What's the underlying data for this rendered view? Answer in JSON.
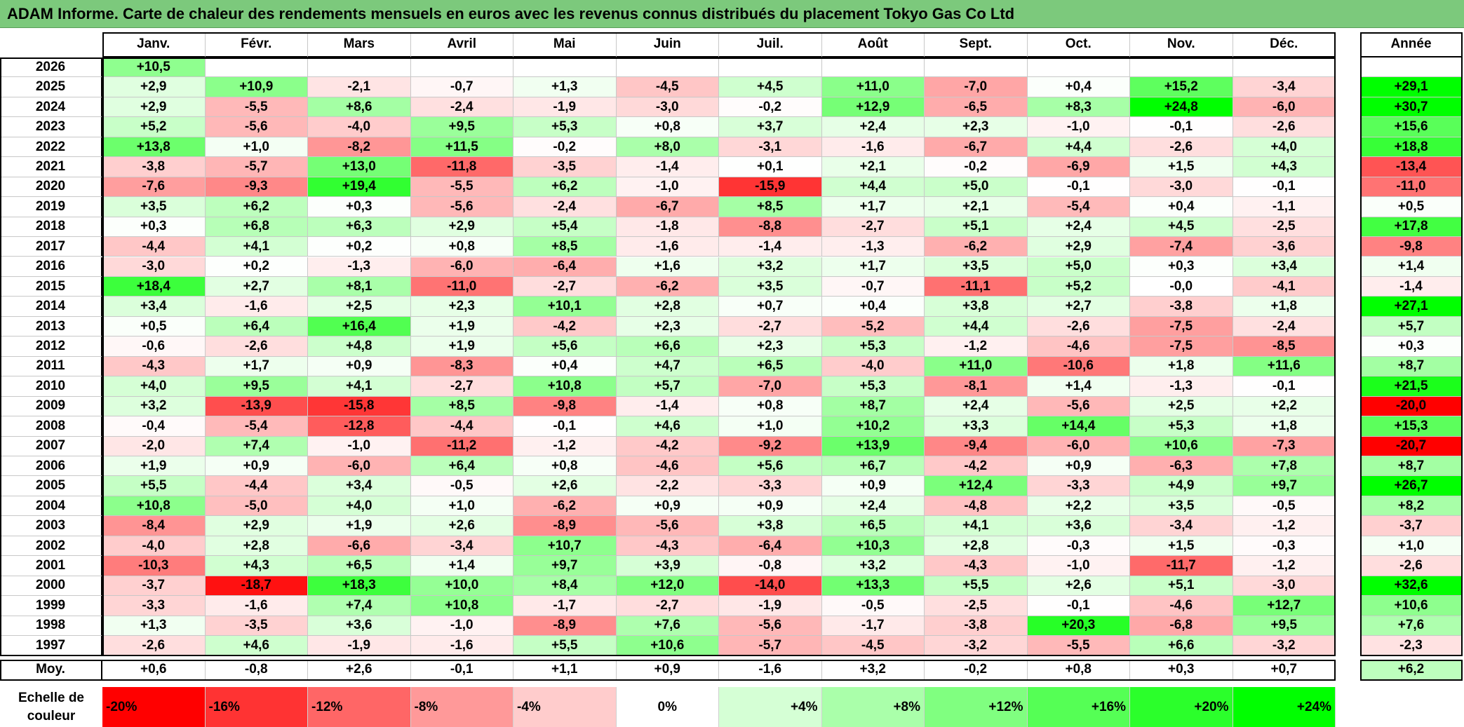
{
  "title": "ADAM Informe. Carte de chaleur des rendements mensuels en euros avec les revenus connus distribués du placement Tokyo Gas Co Ltd",
  "chart_data": {
    "type": "heatmap",
    "title": "ADAM Informe. Carte de chaleur des rendements mensuels en euros avec les revenus connus distribués du placement Tokyo Gas Co Ltd",
    "months": [
      "Janv.",
      "Févr.",
      "Mars",
      "Avril",
      "Mai",
      "Juin",
      "Juil.",
      "Août",
      "Sept.",
      "Oct.",
      "Nov.",
      "Déc."
    ],
    "year_header": "Année",
    "rows": [
      {
        "year": "2026",
        "values": [
          "+10,5",
          null,
          null,
          null,
          null,
          null,
          null,
          null,
          null,
          null,
          null,
          null
        ],
        "annual": null
      },
      {
        "year": "2025",
        "values": [
          "+2,9",
          "+10,9",
          "-2,1",
          "-0,7",
          "+1,3",
          "-4,5",
          "+4,5",
          "+11,0",
          "-7,0",
          "+0,4",
          "+15,2",
          "-3,4"
        ],
        "annual": "+29,1"
      },
      {
        "year": "2024",
        "values": [
          "+2,9",
          "-5,5",
          "+8,6",
          "-2,4",
          "-1,9",
          "-3,0",
          "-0,2",
          "+12,9",
          "-6,5",
          "+8,3",
          "+24,8",
          "-6,0"
        ],
        "annual": "+30,7"
      },
      {
        "year": "2023",
        "values": [
          "+5,2",
          "-5,6",
          "-4,0",
          "+9,5",
          "+5,3",
          "+0,8",
          "+3,7",
          "+2,4",
          "+2,3",
          "-1,0",
          "-0,1",
          "-2,6"
        ],
        "annual": "+15,6"
      },
      {
        "year": "2022",
        "values": [
          "+13,8",
          "+1,0",
          "-8,2",
          "+11,5",
          "-0,2",
          "+8,0",
          "-3,1",
          "-1,6",
          "-6,7",
          "+4,4",
          "-2,6",
          "+4,0"
        ],
        "annual": "+18,8"
      },
      {
        "year": "2021",
        "values": [
          "-3,8",
          "-5,7",
          "+13,0",
          "-11,8",
          "-3,5",
          "-1,4",
          "+0,1",
          "+2,1",
          "-0,2",
          "-6,9",
          "+1,5",
          "+4,3"
        ],
        "annual": "-13,4"
      },
      {
        "year": "2020",
        "values": [
          "-7,6",
          "-9,3",
          "+19,4",
          "-5,5",
          "+6,2",
          "-1,0",
          "-15,9",
          "+4,4",
          "+5,0",
          "-0,1",
          "-3,0",
          "-0,1"
        ],
        "annual": "-11,0"
      },
      {
        "year": "2019",
        "values": [
          "+3,5",
          "+6,2",
          "+0,3",
          "-5,6",
          "-2,4",
          "-6,7",
          "+8,5",
          "+1,7",
          "+2,1",
          "-5,4",
          "+0,4",
          "-1,1"
        ],
        "annual": "+0,5"
      },
      {
        "year": "2018",
        "values": [
          "+0,3",
          "+6,8",
          "+6,3",
          "+2,9",
          "+5,4",
          "-1,8",
          "-8,8",
          "-2,7",
          "+5,1",
          "+2,4",
          "+4,5",
          "-2,5"
        ],
        "annual": "+17,8"
      },
      {
        "year": "2017",
        "values": [
          "-4,4",
          "+4,1",
          "+0,2",
          "+0,8",
          "+8,5",
          "-1,6",
          "-1,4",
          "-1,3",
          "-6,2",
          "+2,9",
          "-7,4",
          "-3,6"
        ],
        "annual": "-9,8"
      },
      {
        "year": "2016",
        "values": [
          "-3,0",
          "+0,2",
          "-1,3",
          "-6,0",
          "-6,4",
          "+1,6",
          "+3,2",
          "+1,7",
          "+3,5",
          "+5,0",
          "+0,3",
          "+3,4"
        ],
        "annual": "+1,4"
      },
      {
        "year": "2015",
        "values": [
          "+18,4",
          "+2,7",
          "+8,1",
          "-11,0",
          "-2,7",
          "-6,2",
          "+3,5",
          "-0,7",
          "-11,1",
          "+5,2",
          "-0,0",
          "-4,1"
        ],
        "annual": "-1,4"
      },
      {
        "year": "2014",
        "values": [
          "+3,4",
          "-1,6",
          "+2,5",
          "+2,3",
          "+10,1",
          "+2,8",
          "+0,7",
          "+0,4",
          "+3,8",
          "+2,7",
          "-3,8",
          "+1,8"
        ],
        "annual": "+27,1"
      },
      {
        "year": "2013",
        "values": [
          "+0,5",
          "+6,4",
          "+16,4",
          "+1,9",
          "-4,2",
          "+2,3",
          "-2,7",
          "-5,2",
          "+4,4",
          "-2,6",
          "-7,5",
          "-2,4"
        ],
        "annual": "+5,7"
      },
      {
        "year": "2012",
        "values": [
          "-0,6",
          "-2,6",
          "+4,8",
          "+1,9",
          "+5,6",
          "+6,6",
          "+2,3",
          "+5,3",
          "-1,2",
          "-4,6",
          "-7,5",
          "-8,5"
        ],
        "annual": "+0,3"
      },
      {
        "year": "2011",
        "values": [
          "-4,3",
          "+1,7",
          "+0,9",
          "-8,3",
          "+0,4",
          "+4,7",
          "+6,5",
          "-4,0",
          "+11,0",
          "-10,6",
          "+1,8",
          "+11,6"
        ],
        "annual": "+8,7"
      },
      {
        "year": "2010",
        "values": [
          "+4,0",
          "+9,5",
          "+4,1",
          "-2,7",
          "+10,8",
          "+5,7",
          "-7,0",
          "+5,3",
          "-8,1",
          "+1,4",
          "-1,3",
          "-0,1"
        ],
        "annual": "+21,5"
      },
      {
        "year": "2009",
        "values": [
          "+3,2",
          "-13,9",
          "-15,8",
          "+8,5",
          "-9,8",
          "-1,4",
          "+0,8",
          "+8,7",
          "+2,4",
          "-5,6",
          "+2,5",
          "+2,2"
        ],
        "annual": "-20,0"
      },
      {
        "year": "2008",
        "values": [
          "-0,4",
          "-5,4",
          "-12,8",
          "-4,4",
          "-0,1",
          "+4,6",
          "+1,0",
          "+10,2",
          "+3,3",
          "+14,4",
          "+5,3",
          "+1,8"
        ],
        "annual": "+15,3"
      },
      {
        "year": "2007",
        "values": [
          "-2,0",
          "+7,4",
          "-1,0",
          "-11,2",
          "-1,2",
          "-4,2",
          "-9,2",
          "+13,9",
          "-9,4",
          "-6,0",
          "+10,6",
          "-7,3"
        ],
        "annual": "-20,7"
      },
      {
        "year": "2006",
        "values": [
          "+1,9",
          "+0,9",
          "-6,0",
          "+6,4",
          "+0,8",
          "-4,6",
          "+5,6",
          "+6,7",
          "-4,2",
          "+0,9",
          "-6,3",
          "+7,8"
        ],
        "annual": "+8,7"
      },
      {
        "year": "2005",
        "values": [
          "+5,5",
          "-4,4",
          "+3,4",
          "-0,5",
          "+2,6",
          "-2,2",
          "-3,3",
          "+0,9",
          "+12,4",
          "-3,3",
          "+4,9",
          "+9,7"
        ],
        "annual": "+26,7"
      },
      {
        "year": "2004",
        "values": [
          "+10,8",
          "-5,0",
          "+4,0",
          "+1,0",
          "-6,2",
          "+0,9",
          "+0,9",
          "+2,4",
          "-4,8",
          "+2,2",
          "+3,5",
          "-0,5"
        ],
        "annual": "+8,2"
      },
      {
        "year": "2003",
        "values": [
          "-8,4",
          "+2,9",
          "+1,9",
          "+2,6",
          "-8,9",
          "-5,6",
          "+3,8",
          "+6,5",
          "+4,1",
          "+3,6",
          "-3,4",
          "-1,2"
        ],
        "annual": "-3,7"
      },
      {
        "year": "2002",
        "values": [
          "-4,0",
          "+2,8",
          "-6,6",
          "-3,4",
          "+10,7",
          "-4,3",
          "-6,4",
          "+10,3",
          "+2,8",
          "-0,3",
          "+1,5",
          "-0,3"
        ],
        "annual": "+1,0"
      },
      {
        "year": "2001",
        "values": [
          "-10,3",
          "+4,3",
          "+6,5",
          "+1,4",
          "+9,7",
          "+3,9",
          "-0,8",
          "+3,2",
          "-4,3",
          "-1,0",
          "-11,7",
          "-1,2"
        ],
        "annual": "-2,6"
      },
      {
        "year": "2000",
        "values": [
          "-3,7",
          "-18,7",
          "+18,3",
          "+10,0",
          "+8,4",
          "+12,0",
          "-14,0",
          "+13,3",
          "+5,5",
          "+2,6",
          "+5,1",
          "-3,0"
        ],
        "annual": "+32,6"
      },
      {
        "year": "1999",
        "values": [
          "-3,3",
          "-1,6",
          "+7,4",
          "+10,8",
          "-1,7",
          "-2,7",
          "-1,9",
          "-0,5",
          "-2,5",
          "-0,1",
          "-4,6",
          "+12,7"
        ],
        "annual": "+10,6"
      },
      {
        "year": "1998",
        "values": [
          "+1,3",
          "-3,5",
          "+3,6",
          "-1,0",
          "-8,9",
          "+7,6",
          "-5,6",
          "-1,7",
          "-3,8",
          "+20,3",
          "-6,8",
          "+9,5"
        ],
        "annual": "+7,6"
      },
      {
        "year": "1997",
        "values": [
          "-2,6",
          "+4,6",
          "-1,9",
          "-1,6",
          "+5,5",
          "+10,6",
          "-5,7",
          "-4,5",
          "-3,2",
          "-5,5",
          "+6,6",
          "-3,2"
        ],
        "annual": "-2,3"
      }
    ],
    "average": {
      "label": "Moy.",
      "values": [
        "+0,6",
        "-0,8",
        "+2,6",
        "-0,1",
        "+1,1",
        "+0,9",
        "-1,6",
        "+3,2",
        "-0,2",
        "+0,8",
        "+0,3",
        "+0,7"
      ],
      "annual": "+6,2"
    },
    "scale": {
      "label": "Echelle de couleur",
      "stops": [
        "-20%",
        "-16%",
        "-12%",
        "-8%",
        "-4%",
        "0%",
        "+4%",
        "+8%",
        "+12%",
        "+16%",
        "+20%",
        "+24%"
      ]
    }
  }
}
